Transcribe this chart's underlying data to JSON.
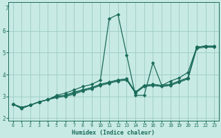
{
  "xlabel": "Humidex (Indice chaleur)",
  "bg_color": "#c8eae4",
  "grid_color": "#a0cfc8",
  "line_color": "#1a6b5a",
  "markersize": 2.5,
  "linewidth": 0.9,
  "xlim": [
    -0.5,
    23.5
  ],
  "ylim": [
    1.9,
    7.3
  ],
  "xticks": [
    0,
    1,
    2,
    3,
    4,
    5,
    6,
    7,
    8,
    9,
    10,
    11,
    12,
    13,
    14,
    15,
    16,
    17,
    18,
    19,
    20,
    21,
    22,
    23
  ],
  "yticks": [
    2,
    3,
    4,
    5,
    6
  ],
  "ytick_extra": 7,
  "series": [
    {
      "x": [
        0,
        1,
        2,
        3,
        4,
        5,
        6,
        7,
        8,
        9,
        10,
        11,
        12,
        13,
        14,
        15,
        16,
        17,
        18,
        19,
        20,
        21,
        22,
        23
      ],
      "y": [
        2.65,
        2.45,
        2.6,
        2.75,
        2.85,
        3.05,
        3.15,
        3.3,
        3.45,
        3.55,
        3.75,
        6.55,
        6.75,
        4.9,
        3.05,
        3.05,
        4.55,
        3.5,
        3.7,
        3.85,
        4.1,
        5.25,
        5.3,
        5.3
      ]
    },
    {
      "x": [
        0,
        1,
        2,
        3,
        4,
        5,
        6,
        7,
        8,
        9,
        10,
        11,
        12,
        13,
        14,
        15,
        16,
        17,
        18,
        19,
        20,
        21,
        22,
        23
      ],
      "y": [
        2.65,
        2.45,
        2.6,
        2.75,
        2.85,
        3.0,
        3.05,
        3.2,
        3.3,
        3.4,
        3.55,
        3.65,
        3.75,
        3.8,
        3.2,
        3.5,
        3.55,
        3.5,
        3.55,
        3.7,
        3.85,
        5.25,
        5.3,
        5.3
      ]
    },
    {
      "x": [
        0,
        1,
        2,
        3,
        4,
        5,
        6,
        7,
        8,
        9,
        10,
        11,
        12,
        13,
        14,
        15,
        16,
        17,
        18,
        19,
        20,
        21,
        22,
        23
      ],
      "y": [
        2.65,
        2.5,
        2.6,
        2.75,
        2.85,
        3.0,
        3.05,
        3.15,
        3.3,
        3.4,
        3.55,
        3.65,
        3.75,
        3.8,
        3.2,
        3.5,
        3.55,
        3.5,
        3.55,
        3.7,
        3.85,
        5.25,
        5.3,
        5.3
      ]
    },
    {
      "x": [
        0,
        1,
        2,
        3,
        4,
        5,
        6,
        7,
        8,
        9,
        10,
        11,
        12,
        13,
        14,
        15,
        16,
        17,
        18,
        19,
        20,
        21,
        22,
        23
      ],
      "y": [
        2.65,
        2.5,
        2.6,
        2.75,
        2.85,
        2.95,
        3.0,
        3.1,
        3.25,
        3.35,
        3.5,
        3.6,
        3.7,
        3.75,
        3.15,
        3.45,
        3.5,
        3.45,
        3.5,
        3.65,
        3.8,
        5.2,
        5.25,
        5.25
      ]
    }
  ]
}
